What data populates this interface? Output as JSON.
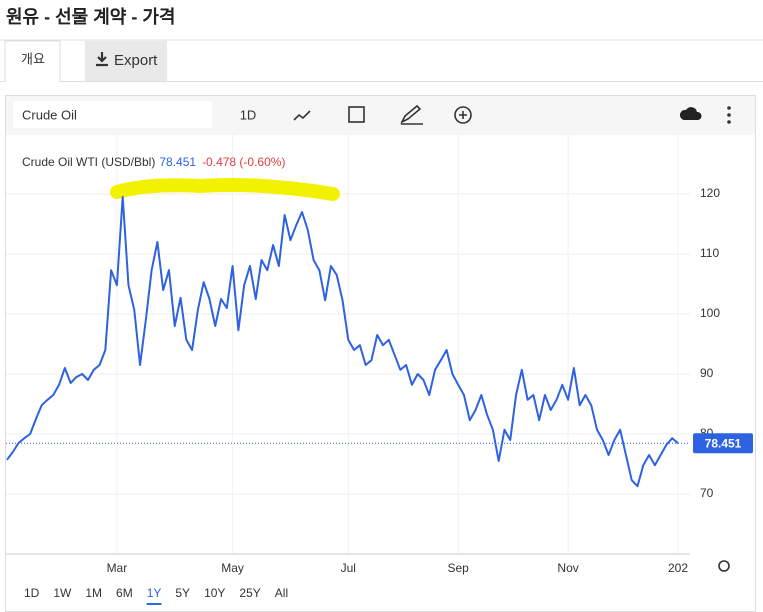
{
  "header": {
    "title": "원유 - 선물 계약 - 가격"
  },
  "tabs": [
    {
      "label": "개요"
    },
    {
      "label": "Export"
    }
  ],
  "toolbar": {
    "symbol": "Crude Oil",
    "interval": "1D"
  },
  "legend": {
    "change": "-0.478 (-0.60%)"
  },
  "chart_data": {
    "type": "line",
    "categories": [
      null,
      null,
      null,
      null,
      null,
      null,
      null,
      null,
      null,
      null,
      null,
      null,
      null,
      null,
      null,
      null,
      null,
      null,
      null,
      "Mar",
      null,
      null,
      null,
      null,
      null,
      null,
      null,
      null,
      null,
      null,
      null,
      null,
      null,
      null,
      null,
      null,
      null,
      null,
      null,
      "May",
      null,
      null,
      null,
      null,
      null,
      null,
      null,
      null,
      null,
      null,
      null,
      null,
      null,
      null,
      null,
      null,
      null,
      null,
      null,
      "Jul",
      null,
      null,
      null,
      null,
      null,
      null,
      null,
      null,
      null,
      null,
      null,
      null,
      null,
      null,
      null,
      null,
      null,
      null,
      "Sep",
      null,
      null,
      null,
      null,
      null,
      null,
      null,
      null,
      null,
      null,
      null,
      null,
      null,
      null,
      null,
      null,
      null,
      null,
      "Nov",
      null,
      null,
      null,
      null,
      null,
      null,
      null,
      null,
      null,
      null,
      null,
      null,
      null,
      null,
      null,
      null,
      null,
      null,
      "202"
    ],
    "series": [
      {
        "name": "Crude Oil WTI (USD/Bbl)",
        "color": "#2d62e0",
        "values": [
          75.7,
          77,
          78.5,
          79.3,
          80,
          82.5,
          84.8,
          85.7,
          86.5,
          88.2,
          91,
          88.5,
          89.5,
          90,
          89,
          90.7,
          91.5,
          94,
          107.3,
          104.8,
          119.5,
          104.8,
          100.7,
          91.5,
          99,
          107.3,
          112,
          104,
          107.3,
          98,
          102.7,
          95.7,
          94,
          100.7,
          105.3,
          102.5,
          98,
          102.5,
          101,
          108,
          97.3,
          104.8,
          108,
          102.5,
          109,
          107.3,
          111.5,
          108,
          116.5,
          112.3,
          114.8,
          117,
          114,
          109,
          107.3,
          102.3,
          108,
          106.5,
          102.3,
          95.7,
          94,
          94.8,
          91.5,
          92.3,
          96.5,
          94.8,
          95.7,
          93.2,
          90.7,
          91.5,
          88.2,
          90,
          89,
          86.5,
          90.7,
          92.3,
          94,
          90,
          88.2,
          86.5,
          82.3,
          84,
          86.5,
          83.2,
          80.7,
          75.5,
          80.7,
          79,
          86.5,
          90.7,
          85.7,
          86.5,
          82.3,
          86.5,
          84,
          85.7,
          88.2,
          85.7,
          91,
          84.8,
          86.5,
          84.8,
          80.7,
          79,
          76.5,
          79,
          80.7,
          76.5,
          72.3,
          71.3,
          74.8,
          76.5,
          74.8,
          76.5,
          78.2,
          79.3,
          78.451
        ]
      }
    ],
    "ylim": [
      60,
      130
    ],
    "yticks": [
      70,
      80,
      90,
      100,
      110,
      120
    ],
    "grid": true
  },
  "ranges": {
    "options": [
      "1D",
      "1W",
      "1M",
      "6M",
      "1Y",
      "5Y",
      "10Y",
      "25Y",
      "All"
    ],
    "active_index": 4
  }
}
